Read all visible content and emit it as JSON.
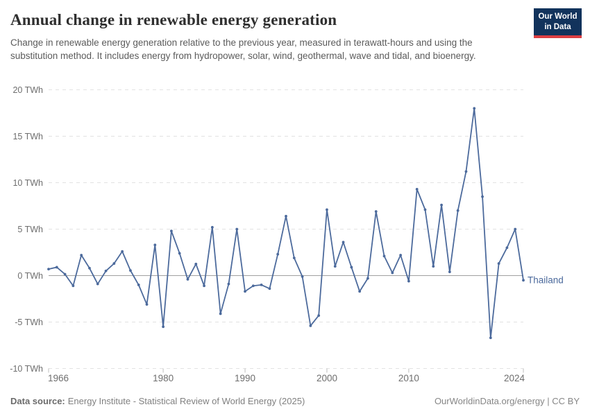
{
  "header": {
    "title": "Annual change in renewable energy generation",
    "subtitle": "Change in renewable energy generation relative to the previous year, measured in terawatt-hours and using the substitution method. It includes energy from hydropower, solar, wind, geothermal, wave and tidal, and bioenergy."
  },
  "logo": {
    "line1": "Our World",
    "line2": "in Data",
    "bg_color": "#12335c",
    "accent_color": "#dc3e42"
  },
  "chart_data": {
    "type": "line",
    "title": "Annual change in renewable energy generation",
    "unit": "TWh",
    "xlim": [
      1966,
      2024
    ],
    "ylim": [
      -10,
      20
    ],
    "yticks": [
      -10,
      -5,
      0,
      5,
      10,
      15,
      20
    ],
    "ytick_suffix": " TWh",
    "xticks": [
      1966,
      1980,
      1990,
      2000,
      2010,
      2024
    ],
    "grid": "dashed-horizontal",
    "zero_line": true,
    "legend_position": "end-of-line-label",
    "series": [
      {
        "name": "Thailand",
        "color": "#4c6a9c",
        "x": [
          1966,
          1967,
          1968,
          1969,
          1970,
          1971,
          1972,
          1973,
          1974,
          1975,
          1976,
          1977,
          1978,
          1979,
          1980,
          1981,
          1982,
          1983,
          1984,
          1985,
          1986,
          1987,
          1988,
          1989,
          1990,
          1991,
          1992,
          1993,
          1994,
          1995,
          1996,
          1997,
          1998,
          1999,
          2000,
          2001,
          2002,
          2003,
          2004,
          2005,
          2006,
          2007,
          2008,
          2009,
          2010,
          2011,
          2012,
          2013,
          2014,
          2015,
          2016,
          2017,
          2018,
          2019,
          2020,
          2021,
          2022,
          2023,
          2024
        ],
        "values": [
          0.7,
          0.9,
          0.15,
          -1.1,
          2.2,
          0.8,
          -0.9,
          0.5,
          1.3,
          2.6,
          0.55,
          -1.0,
          -3.1,
          3.3,
          -5.5,
          4.8,
          2.4,
          -0.4,
          1.25,
          -1.1,
          5.2,
          -4.1,
          -0.9,
          5.0,
          -1.7,
          -1.1,
          -1.0,
          -1.4,
          2.3,
          6.4,
          1.9,
          -0.1,
          -5.4,
          -4.3,
          7.1,
          1.0,
          3.6,
          0.9,
          -1.7,
          -0.3,
          6.9,
          2.1,
          0.3,
          2.2,
          -0.6,
          9.3,
          7.1,
          1.0,
          7.6,
          0.4,
          7.0,
          11.2,
          18.0,
          8.5,
          -6.7,
          1.3,
          3.0,
          5.0,
          -0.5
        ]
      }
    ],
    "colors": {
      "line": "#4c6a9c",
      "grid": "#e2e2e2",
      "zero_line": "#a0a0a0",
      "tick_label": "#6e6e6e"
    }
  },
  "footer": {
    "source_label": "Data source:",
    "source_text": "Energy Institute - Statistical Review of World Energy (2025)",
    "right_text": "OurWorldinData.org/energy | CC BY"
  }
}
